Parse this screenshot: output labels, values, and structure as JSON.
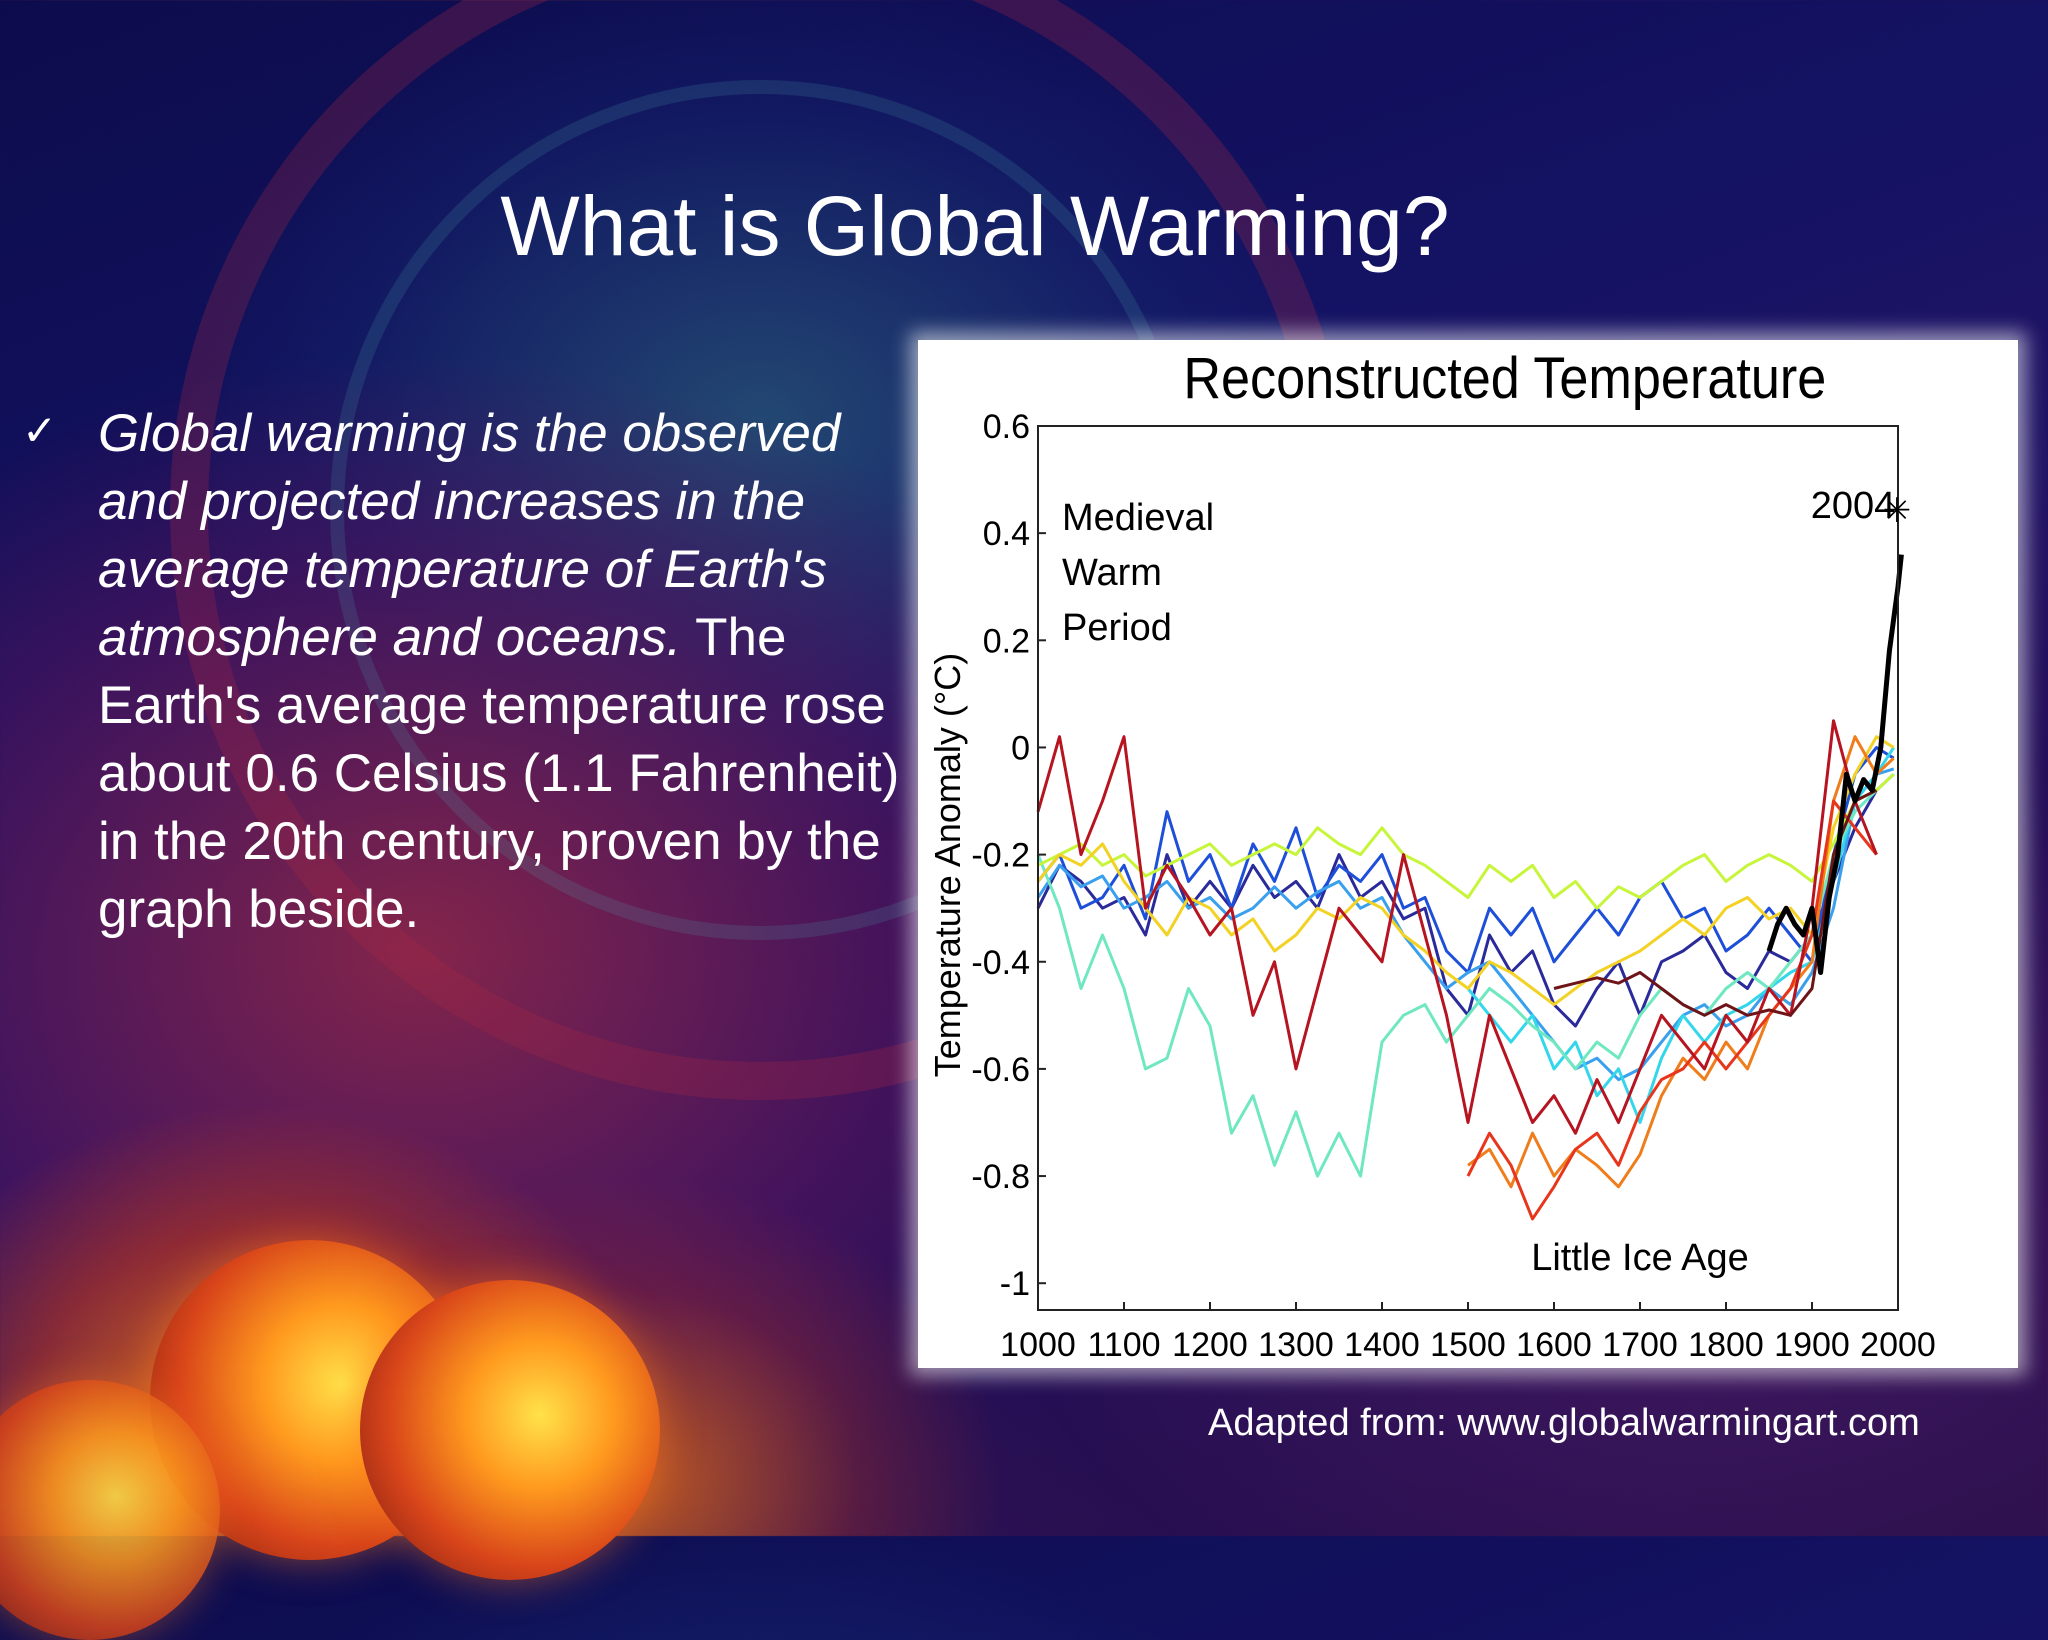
{
  "slide": {
    "title": "What is Global Warming?",
    "bullet_symbol": "✓",
    "body_italic": " Global warming is the observed and projected increases in the average temperature of Earth's atmosphere and oceans.",
    "body_regular": " The Earth's average temperature rose about 0.6   Celsius (1.1 Fahrenheit) in the 20th century, proven by the graph beside.",
    "source": "Adapted from: www.globalwarmingart.com"
  },
  "chart_data": {
    "type": "line",
    "title": "Reconstructed Temperature",
    "ylabel": "Temperature Anomaly (°C)",
    "xlabel": "",
    "xlim": [
      1000,
      2000
    ],
    "ylim": [
      -1.05,
      0.6
    ],
    "xticks": [
      1000,
      1100,
      1200,
      1300,
      1400,
      1500,
      1600,
      1700,
      1800,
      1900,
      2000
    ],
    "yticks": [
      0.6,
      0.4,
      0.2,
      0,
      -0.2,
      -0.4,
      -0.6,
      -0.8,
      -1
    ],
    "grid": false,
    "legend": "none",
    "annotations": [
      {
        "text": "Medieval\nWarm\nPeriod",
        "x": 1025,
        "y": 0.3
      },
      {
        "text": "Little Ice Age",
        "x": 1640,
        "y": -1.0
      },
      {
        "text": "2004",
        "marker": "✳",
        "x": 2004,
        "y": 0.45
      }
    ],
    "series": [
      {
        "color": "#2a2a9a",
        "x": [
          1000,
          1025,
          1050,
          1075,
          1100,
          1125,
          1150,
          1175,
          1200,
          1225,
          1250,
          1275,
          1300,
          1325,
          1350,
          1375,
          1400,
          1425,
          1450,
          1475,
          1500,
          1525,
          1550,
          1575,
          1600,
          1625,
          1650,
          1675,
          1700,
          1725,
          1750,
          1775,
          1800,
          1825,
          1850,
          1875,
          1900,
          1925,
          1950,
          1975,
          1995
        ],
        "y": [
          -0.3,
          -0.22,
          -0.25,
          -0.3,
          -0.28,
          -0.35,
          -0.2,
          -0.3,
          -0.25,
          -0.3,
          -0.22,
          -0.28,
          -0.25,
          -0.3,
          -0.2,
          -0.28,
          -0.25,
          -0.32,
          -0.3,
          -0.45,
          -0.5,
          -0.35,
          -0.42,
          -0.38,
          -0.48,
          -0.52,
          -0.45,
          -0.4,
          -0.5,
          -0.4,
          -0.38,
          -0.35,
          -0.42,
          -0.45,
          -0.38,
          -0.4,
          -0.35,
          -0.25,
          -0.15,
          -0.08,
          -0.05
        ]
      },
      {
        "color": "#1e4fd8",
        "x": [
          1000,
          1025,
          1050,
          1075,
          1100,
          1125,
          1150,
          1175,
          1200,
          1225,
          1250,
          1275,
          1300,
          1325,
          1350,
          1375,
          1400,
          1425,
          1450,
          1475,
          1500,
          1525,
          1550,
          1575,
          1600,
          1625,
          1650,
          1675,
          1700,
          1725,
          1750,
          1775,
          1800,
          1825,
          1850,
          1875,
          1900,
          1925,
          1950,
          1975,
          1995
        ],
        "y": [
          -0.25,
          -0.2,
          -0.3,
          -0.28,
          -0.22,
          -0.32,
          -0.12,
          -0.25,
          -0.2,
          -0.3,
          -0.18,
          -0.25,
          -0.15,
          -0.28,
          -0.22,
          -0.25,
          -0.2,
          -0.3,
          -0.28,
          -0.38,
          -0.42,
          -0.3,
          -0.35,
          -0.3,
          -0.4,
          -0.35,
          -0.3,
          -0.35,
          -0.28,
          -0.25,
          -0.32,
          -0.3,
          -0.38,
          -0.35,
          -0.3,
          -0.35,
          -0.4,
          -0.2,
          -0.05,
          0.0,
          -0.02
        ]
      },
      {
        "color": "#3aa0ee",
        "x": [
          1000,
          1025,
          1050,
          1075,
          1100,
          1125,
          1150,
          1175,
          1200,
          1225,
          1250,
          1275,
          1300,
          1325,
          1350,
          1375,
          1400,
          1425,
          1450,
          1475,
          1500,
          1525,
          1550,
          1575,
          1600,
          1625,
          1650,
          1675,
          1700,
          1725,
          1750,
          1775,
          1800,
          1825,
          1850,
          1875,
          1900,
          1925,
          1950,
          1975,
          1995
        ],
        "y": [
          -0.28,
          -0.22,
          -0.26,
          -0.24,
          -0.3,
          -0.28,
          -0.25,
          -0.3,
          -0.28,
          -0.32,
          -0.3,
          -0.26,
          -0.3,
          -0.27,
          -0.25,
          -0.3,
          -0.28,
          -0.35,
          -0.4,
          -0.45,
          -0.42,
          -0.4,
          -0.45,
          -0.5,
          -0.55,
          -0.6,
          -0.58,
          -0.62,
          -0.6,
          -0.55,
          -0.5,
          -0.48,
          -0.52,
          -0.5,
          -0.45,
          -0.48,
          -0.42,
          -0.3,
          -0.1,
          -0.05,
          -0.04
        ]
      },
      {
        "color": "#33d6ea",
        "x": [
          1500,
          1525,
          1550,
          1575,
          1600,
          1625,
          1650,
          1675,
          1700,
          1725,
          1750,
          1775,
          1800,
          1825,
          1850,
          1875,
          1900,
          1925,
          1950,
          1975,
          1995
        ],
        "y": [
          -0.45,
          -0.5,
          -0.55,
          -0.5,
          -0.6,
          -0.55,
          -0.65,
          -0.6,
          -0.7,
          -0.58,
          -0.5,
          -0.55,
          -0.5,
          -0.48,
          -0.45,
          -0.42,
          -0.4,
          -0.25,
          -0.1,
          -0.05,
          0.0
        ]
      },
      {
        "color": "#6fe8c2",
        "x": [
          1000,
          1025,
          1050,
          1075,
          1100,
          1125,
          1150,
          1175,
          1200,
          1225,
          1250,
          1275,
          1300,
          1325,
          1350,
          1375,
          1400,
          1425,
          1450,
          1475,
          1500,
          1525,
          1550,
          1575,
          1600,
          1625,
          1650,
          1675,
          1700,
          1725,
          1750,
          1775,
          1800,
          1825,
          1850,
          1875,
          1900,
          1925,
          1950,
          1975,
          1995
        ],
        "y": [
          -0.2,
          -0.3,
          -0.45,
          -0.35,
          -0.45,
          -0.6,
          -0.58,
          -0.45,
          -0.52,
          -0.72,
          -0.65,
          -0.78,
          -0.68,
          -0.8,
          -0.72,
          -0.8,
          -0.55,
          -0.5,
          -0.48,
          -0.55,
          -0.5,
          -0.45,
          -0.48,
          -0.52,
          -0.55,
          -0.6,
          -0.55,
          -0.58,
          -0.5,
          -0.45,
          -0.48,
          -0.5,
          -0.45,
          -0.42,
          -0.45,
          -0.4,
          -0.35,
          -0.2,
          -0.12,
          -0.08,
          -0.05
        ]
      },
      {
        "color": "#c6f53a",
        "x": [
          1000,
          1025,
          1050,
          1075,
          1100,
          1125,
          1150,
          1175,
          1200,
          1225,
          1250,
          1275,
          1300,
          1325,
          1350,
          1375,
          1400,
          1425,
          1450,
          1475,
          1500,
          1525,
          1550,
          1575,
          1600,
          1625,
          1650,
          1675,
          1700,
          1725,
          1750,
          1775,
          1800,
          1825,
          1850,
          1875,
          1900,
          1925,
          1950,
          1975,
          1995
        ],
        "y": [
          -0.22,
          -0.2,
          -0.18,
          -0.22,
          -0.2,
          -0.24,
          -0.22,
          -0.2,
          -0.18,
          -0.22,
          -0.2,
          -0.18,
          -0.2,
          -0.15,
          -0.18,
          -0.2,
          -0.15,
          -0.2,
          -0.22,
          -0.25,
          -0.28,
          -0.22,
          -0.25,
          -0.22,
          -0.28,
          -0.25,
          -0.3,
          -0.26,
          -0.28,
          -0.25,
          -0.22,
          -0.2,
          -0.25,
          -0.22,
          -0.2,
          -0.22,
          -0.25,
          -0.18,
          -0.1,
          -0.08,
          -0.05
        ]
      },
      {
        "color": "#f2d224",
        "x": [
          1000,
          1025,
          1050,
          1075,
          1100,
          1125,
          1150,
          1175,
          1200,
          1225,
          1250,
          1275,
          1300,
          1325,
          1350,
          1375,
          1400,
          1425,
          1450,
          1475,
          1500,
          1525,
          1550,
          1575,
          1600,
          1625,
          1650,
          1675,
          1700,
          1725,
          1750,
          1775,
          1800,
          1825,
          1850,
          1875,
          1900,
          1925,
          1950,
          1975,
          1995
        ],
        "y": [
          -0.25,
          -0.2,
          -0.22,
          -0.18,
          -0.25,
          -0.3,
          -0.35,
          -0.28,
          -0.3,
          -0.35,
          -0.32,
          -0.38,
          -0.35,
          -0.3,
          -0.32,
          -0.28,
          -0.3,
          -0.35,
          -0.38,
          -0.42,
          -0.45,
          -0.4,
          -0.42,
          -0.45,
          -0.48,
          -0.45,
          -0.42,
          -0.4,
          -0.38,
          -0.35,
          -0.32,
          -0.35,
          -0.3,
          -0.28,
          -0.32,
          -0.3,
          -0.35,
          -0.15,
          -0.05,
          0.02,
          0.0
        ]
      },
      {
        "color": "#f07d1c",
        "x": [
          1500,
          1525,
          1550,
          1575,
          1600,
          1625,
          1650,
          1675,
          1700,
          1725,
          1750,
          1775,
          1800,
          1825,
          1850,
          1875,
          1900,
          1925,
          1950,
          1975,
          1995
        ],
        "y": [
          -0.78,
          -0.75,
          -0.82,
          -0.72,
          -0.8,
          -0.75,
          -0.78,
          -0.82,
          -0.76,
          -0.65,
          -0.58,
          -0.62,
          -0.55,
          -0.6,
          -0.5,
          -0.45,
          -0.4,
          -0.1,
          0.02,
          -0.05,
          -0.02
        ]
      },
      {
        "color": "#e8361c",
        "x": [
          1500,
          1525,
          1550,
          1575,
          1600,
          1625,
          1650,
          1675,
          1700,
          1725,
          1750,
          1775,
          1800,
          1825,
          1850,
          1875,
          1900,
          1925,
          1950,
          1975
        ],
        "y": [
          -0.8,
          -0.72,
          -0.78,
          -0.88,
          -0.82,
          -0.75,
          -0.72,
          -0.78,
          -0.68,
          -0.62,
          -0.6,
          -0.55,
          -0.6,
          -0.55,
          -0.5,
          -0.45,
          -0.35,
          -0.1,
          -0.15,
          -0.2
        ]
      },
      {
        "color": "#b51420",
        "x": [
          1000,
          1025,
          1050,
          1075,
          1100,
          1125,
          1150,
          1175,
          1200,
          1225,
          1250,
          1275,
          1300,
          1325,
          1350,
          1375,
          1400,
          1425,
          1450,
          1475,
          1500,
          1525,
          1550,
          1575,
          1600,
          1625,
          1650,
          1675,
          1700,
          1725,
          1750,
          1775,
          1800,
          1825,
          1850,
          1875,
          1900,
          1925,
          1950,
          1975
        ],
        "y": [
          -0.12,
          0.02,
          -0.2,
          -0.1,
          0.02,
          -0.3,
          -0.22,
          -0.28,
          -0.35,
          -0.3,
          -0.5,
          -0.4,
          -0.6,
          -0.45,
          -0.3,
          -0.35,
          -0.4,
          -0.2,
          -0.35,
          -0.5,
          -0.7,
          -0.5,
          -0.6,
          -0.7,
          -0.65,
          -0.72,
          -0.62,
          -0.7,
          -0.6,
          -0.5,
          -0.55,
          -0.6,
          -0.5,
          -0.55,
          -0.45,
          -0.5,
          -0.3,
          0.05,
          -0.1,
          -0.2
        ]
      },
      {
        "color": "#6e1418",
        "x": [
          1600,
          1625,
          1650,
          1675,
          1700,
          1725,
          1750,
          1775,
          1800,
          1825,
          1850,
          1875,
          1900,
          1925,
          1950,
          1975
        ],
        "y": [
          -0.45,
          -0.44,
          -0.43,
          -0.44,
          -0.42,
          -0.45,
          -0.48,
          -0.5,
          -0.48,
          -0.5,
          -0.49,
          -0.5,
          -0.45,
          -0.2,
          -0.1,
          -0.08
        ]
      },
      {
        "color": "#000000",
        "width": 5,
        "x": [
          1850,
          1860,
          1870,
          1880,
          1890,
          1900,
          1910,
          1920,
          1930,
          1940,
          1950,
          1960,
          1970,
          1980,
          1990,
          2000,
          2004
        ],
        "y": [
          -0.38,
          -0.33,
          -0.3,
          -0.33,
          -0.35,
          -0.3,
          -0.42,
          -0.28,
          -0.2,
          -0.05,
          -0.1,
          -0.06,
          -0.08,
          0.0,
          0.18,
          0.3,
          0.36
        ]
      }
    ]
  }
}
